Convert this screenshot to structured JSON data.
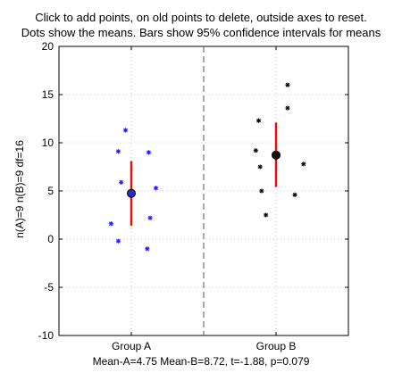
{
  "title_line1": "Click to add points, on old points to delete, outside axes to reset.",
  "title_line2": "Dots show the means. Bars show 95% confidence intervals for means",
  "ylabel": "n(A)=9  n(B)=9  df=16",
  "stats_line": "Mean-A=4.75   Mean-B=8.72,  t=-1.88,  p=0.079",
  "chart_data": {
    "type": "scatter",
    "categories": [
      "Group A",
      "Group B"
    ],
    "ylim": [
      -10,
      20
    ],
    "yticks": [
      "-10",
      "-5",
      "0",
      "5",
      "10",
      "15",
      "20"
    ],
    "ytick_values": [
      -10,
      -5,
      0,
      5,
      10,
      15,
      20
    ],
    "grid": true,
    "series": [
      {
        "category": "Group A",
        "color": "#1a1aff",
        "points": [
          {
            "x": 0.86,
            "y": 1.6
          },
          {
            "x": 0.91,
            "y": -0.2
          },
          {
            "x": 0.91,
            "y": 9.1
          },
          {
            "x": 0.93,
            "y": 5.9
          },
          {
            "x": 0.96,
            "y": 11.3
          },
          {
            "x": 1.11,
            "y": -1.0
          },
          {
            "x": 1.12,
            "y": 9.0
          },
          {
            "x": 1.13,
            "y": 2.2
          },
          {
            "x": 1.17,
            "y": 5.3
          }
        ],
        "mean": 4.75,
        "ci": [
          1.4,
          8.1
        ],
        "mean_color": "#2a2acc"
      },
      {
        "category": "Group B",
        "color": "#000000",
        "points": [
          {
            "x": 1.86,
            "y": 9.2
          },
          {
            "x": 1.88,
            "y": 12.3
          },
          {
            "x": 1.89,
            "y": 7.5
          },
          {
            "x": 1.9,
            "y": 5.0
          },
          {
            "x": 1.93,
            "y": 2.5
          },
          {
            "x": 2.08,
            "y": 16.0
          },
          {
            "x": 2.08,
            "y": 13.6
          },
          {
            "x": 2.13,
            "y": 4.6
          },
          {
            "x": 2.19,
            "y": 7.8
          }
        ],
        "mean": 8.72,
        "ci": [
          5.4,
          12.1
        ],
        "mean_color": "#111111"
      }
    ],
    "ci_color": "#e01010"
  }
}
